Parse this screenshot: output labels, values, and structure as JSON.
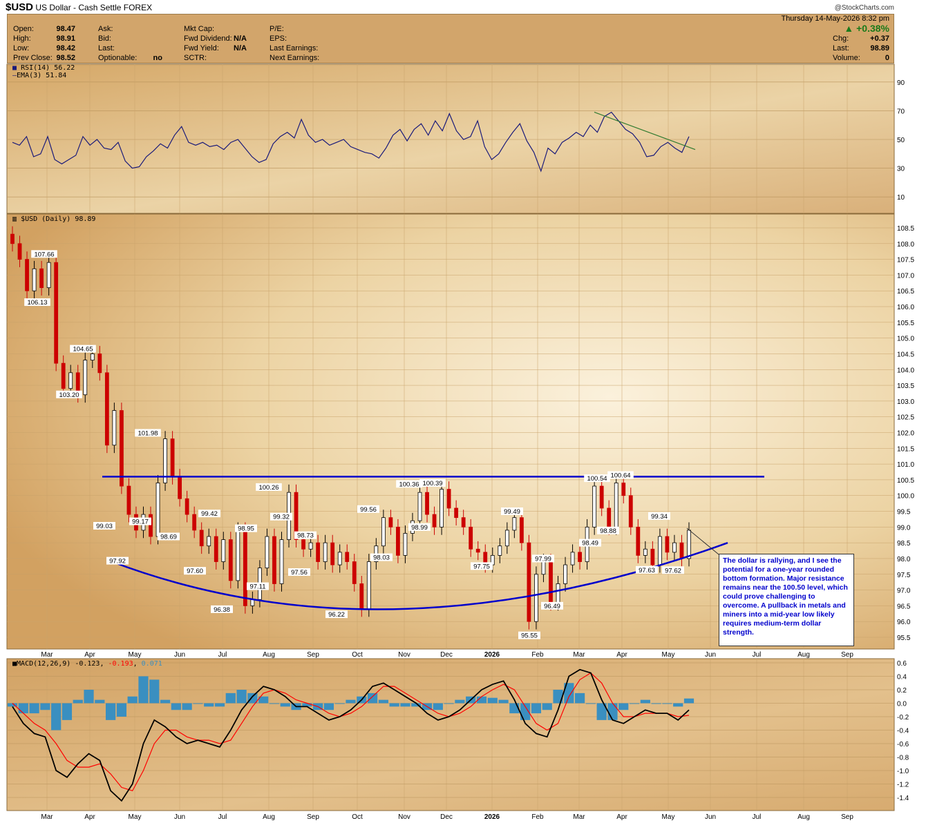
{
  "header": {
    "symbol": "$USD",
    "name": "US Dollar - Cash Settle",
    "exchange": "FOREX",
    "copyright": "@StockCharts.com",
    "datetime": "Thursday  14-May-2026  8:32 pm",
    "fields": {
      "open_label": "Open:",
      "open": "98.47",
      "high_label": "High:",
      "high": "98.91",
      "low_label": "Low:",
      "low": "98.42",
      "prev_label": "Prev Close:",
      "prev": "98.52",
      "ask_label": "Ask:",
      "bid_label": "Bid:",
      "last_label": "Last:",
      "optionable_label": "Optionable:",
      "optionable": "no",
      "mktcap_label": "Mkt Cap:",
      "fwddiv_label": "Fwd Dividend:",
      "fwddiv": "N/A",
      "fwdyield_label": "Fwd Yield:",
      "fwdyield": "N/A",
      "sctr_label": "SCTR:",
      "pe_label": "P/E:",
      "eps_label": "EPS:",
      "lastearn_label": "Last Earnings:",
      "nextearn_label": "Next Earnings:",
      "pct_change": "+0.38%",
      "chg_label": "Chg:",
      "chg": "+0.37",
      "last2_label": "Last:",
      "last2": "98.89",
      "volume_label": "Volume:",
      "volume": "0"
    }
  },
  "panels": {
    "rsi_label": "RSI(14) 56.22",
    "ema_label": "EMA(3) 51.84",
    "price_label": "$USD (Daily) 98.89",
    "macd_label_prefix": "MACD(12,26,9) -0.123, ",
    "macd_signal_value": "-0.193",
    "macd_hist_sep": ", ",
    "macd_hist_value": "0.071"
  },
  "annotation": {
    "text": "The dollar is rallying, and I see the potential for a one-year rounded bottom formation. Major resistance remains near the 100.50 level, which could prove challenging to overcome. A pullback in metals and miners into a mid-year low likely requires medium-term dollar strength."
  },
  "colors": {
    "panel_bg": "#d8ae72",
    "panel_bg_light": "#f1e0bd",
    "resistance_line": "#0000cc",
    "up_candle": "#000000",
    "down_candle": "#cc0000",
    "rsi_line": "#1a1a7a",
    "rsi_trend_line": "#2f7a2f",
    "macd_line": "#000000",
    "signal_line": "#ff0000",
    "histogram": "#3a8fc0"
  },
  "chart_data": [
    {
      "type": "line",
      "title": "RSI(14)",
      "y_ticks": [
        "90",
        "70",
        "50",
        "30",
        "10"
      ],
      "ylim": [
        0,
        100
      ],
      "series": [
        {
          "name": "RSI(14)",
          "values": [
            48,
            46,
            52,
            38,
            40,
            52,
            36,
            33,
            36,
            39,
            52,
            46,
            50,
            44,
            43,
            48,
            35,
            30,
            31,
            38,
            42,
            47,
            44,
            53,
            59,
            48,
            46,
            48,
            45,
            46,
            43,
            48,
            50,
            44,
            38,
            34,
            36,
            47,
            52,
            55,
            51,
            64,
            53,
            48,
            50,
            46,
            48,
            50,
            45,
            43,
            41,
            40,
            37,
            44,
            53,
            57,
            49,
            57,
            61,
            53,
            63,
            56,
            68,
            56,
            50,
            52,
            63,
            45,
            36,
            40,
            48,
            55,
            61,
            49,
            41,
            28,
            44,
            40,
            48,
            51,
            55,
            52,
            60,
            55,
            66,
            69,
            63,
            57,
            54,
            48,
            38,
            39,
            45,
            48,
            44,
            41,
            52
          ]
        }
      ],
      "trend_line_value_range": [
        69,
        43
      ]
    },
    {
      "type": "bar",
      "title": "$USD (Daily)",
      "y_ticks": [
        "108.5",
        "108.0",
        "107.5",
        "107.0",
        "106.5",
        "106.0",
        "105.5",
        "105.0",
        "104.5",
        "104.0",
        "103.5",
        "103.0",
        "102.5",
        "102.0",
        "101.5",
        "101.0",
        "100.5",
        "100.0",
        "99.5",
        "99.0",
        "98.5",
        "98.0",
        "97.5",
        "97.0",
        "96.5",
        "96.0",
        "95.5"
      ],
      "ylim": [
        95.2,
        108.8
      ],
      "x_ticks": [
        "Mar",
        "Apr",
        "May",
        "Jun",
        "Jul",
        "Aug",
        "Sep",
        "Oct",
        "Nov",
        "Dec",
        "2026",
        "Feb",
        "Mar",
        "Apr",
        "May",
        "Jun",
        "Jul",
        "Aug",
        "Sep"
      ],
      "closes": [
        108.0,
        107.5,
        106.5,
        107.2,
        106.6,
        107.4,
        104.2,
        103.4,
        103.9,
        103.2,
        104.3,
        104.5,
        103.9,
        101.6,
        102.7,
        100.3,
        99.4,
        98.9,
        99.4,
        98.7,
        100.4,
        101.8,
        100.6,
        99.9,
        99.4,
        98.9,
        98.4,
        98.7,
        97.9,
        98.6,
        97.3,
        98.9,
        96.5,
        96.7,
        97.7,
        98.7,
        97.2,
        98.6,
        100.1,
        98.6,
        98.3,
        98.5,
        97.9,
        98.5,
        97.8,
        98.2,
        97.9,
        97.2,
        96.4,
        97.9,
        98.4,
        99.3,
        99.0,
        98.1,
        98.8,
        99.2,
        100.1,
        99.4,
        99.0,
        100.2,
        99.6,
        99.3,
        99.0,
        98.3,
        98.2,
        97.8,
        98.1,
        98.4,
        98.9,
        99.3,
        98.5,
        96.0,
        97.5,
        97.9,
        96.6,
        97.2,
        97.8,
        98.2,
        97.9,
        99.0,
        100.3,
        99.6,
        99.0,
        100.4,
        100.0,
        99.0,
        98.1,
        98.3,
        97.8,
        98.7,
        98.2,
        98.5,
        98.0,
        98.9
      ],
      "price_labels": [
        {
          "label": "107.66",
          "value": 107.66
        },
        {
          "label": "106.13",
          "value": 106.13
        },
        {
          "label": "104.65",
          "value": 104.65
        },
        {
          "label": "103.20",
          "value": 103.2
        },
        {
          "label": "101.98",
          "value": 101.98
        },
        {
          "label": "99.03",
          "value": 99.03
        },
        {
          "label": "97.92",
          "value": 97.92
        },
        {
          "label": "99.17",
          "value": 99.17
        },
        {
          "label": "98.69",
          "value": 98.69
        },
        {
          "label": "99.42",
          "value": 99.42
        },
        {
          "label": "97.60",
          "value": 97.6
        },
        {
          "label": "96.38",
          "value": 96.38
        },
        {
          "label": "98.95",
          "value": 98.95
        },
        {
          "label": "97.11",
          "value": 97.11
        },
        {
          "label": "100.26",
          "value": 100.26
        },
        {
          "label": "99.32",
          "value": 99.32
        },
        {
          "label": "98.73",
          "value": 98.73
        },
        {
          "label": "97.56",
          "value": 97.56
        },
        {
          "label": "96.22",
          "value": 96.22
        },
        {
          "label": "99.56",
          "value": 99.56
        },
        {
          "label": "98.03",
          "value": 98.03
        },
        {
          "label": "100.36",
          "value": 100.36
        },
        {
          "label": "100.39",
          "value": 100.39
        },
        {
          "label": "98.99",
          "value": 98.99
        },
        {
          "label": "97.75",
          "value": 97.75
        },
        {
          "label": "99.49",
          "value": 99.49
        },
        {
          "label": "95.55",
          "value": 95.55
        },
        {
          "label": "97.99",
          "value": 97.99
        },
        {
          "label": "96.49",
          "value": 96.49
        },
        {
          "label": "98.49",
          "value": 98.49
        },
        {
          "label": "100.54",
          "value": 100.54
        },
        {
          "label": "98.88",
          "value": 98.88
        },
        {
          "label": "100.64",
          "value": 100.64
        },
        {
          "label": "99.34",
          "value": 99.34
        },
        {
          "label": "97.63",
          "value": 97.63
        },
        {
          "label": "97.62",
          "value": 97.62
        }
      ],
      "resistance_level": 100.6,
      "rounded_bottom_curve": {
        "start": 97.9,
        "low": 95.3,
        "end": 98.5
      }
    },
    {
      "type": "line",
      "title": "MACD(12,26,9)",
      "y_ticks": [
        "0.6",
        "0.4",
        "0.2",
        "0.0",
        "-0.2",
        "-0.4",
        "-0.6",
        "-0.8",
        "-1.0",
        "-1.2",
        "-1.4"
      ],
      "ylim": [
        -1.5,
        0.65
      ],
      "series": [
        {
          "name": "MACD",
          "values": [
            -0.05,
            -0.3,
            -0.45,
            -0.5,
            -1.0,
            -1.1,
            -0.9,
            -0.75,
            -0.85,
            -1.3,
            -1.45,
            -1.2,
            -0.6,
            -0.25,
            -0.35,
            -0.5,
            -0.6,
            -0.55,
            -0.6,
            -0.65,
            -0.4,
            -0.1,
            0.1,
            0.25,
            0.2,
            0.1,
            -0.05,
            -0.05,
            -0.15,
            -0.25,
            -0.2,
            -0.1,
            0.05,
            0.25,
            0.3,
            0.2,
            0.1,
            0.0,
            -0.15,
            -0.25,
            -0.2,
            -0.1,
            0.05,
            0.2,
            0.28,
            0.33,
            0.05,
            -0.3,
            -0.45,
            -0.5,
            -0.1,
            0.4,
            0.5,
            0.45,
            0.05,
            -0.25,
            -0.3,
            -0.2,
            -0.1,
            -0.15,
            -0.15,
            -0.25,
            -0.1
          ]
        },
        {
          "name": "Signal",
          "values": [
            0.0,
            -0.15,
            -0.3,
            -0.4,
            -0.6,
            -0.85,
            -0.95,
            -0.95,
            -0.9,
            -1.05,
            -1.25,
            -1.3,
            -1.0,
            -0.6,
            -0.4,
            -0.4,
            -0.5,
            -0.55,
            -0.55,
            -0.6,
            -0.55,
            -0.3,
            -0.05,
            0.15,
            0.2,
            0.15,
            0.05,
            0.0,
            -0.05,
            -0.15,
            -0.2,
            -0.15,
            -0.05,
            0.1,
            0.25,
            0.25,
            0.15,
            0.05,
            -0.05,
            -0.15,
            -0.2,
            -0.15,
            -0.05,
            0.1,
            0.2,
            0.28,
            0.2,
            -0.05,
            -0.3,
            -0.4,
            -0.3,
            0.1,
            0.35,
            0.45,
            0.3,
            0.0,
            -0.2,
            -0.2,
            -0.15,
            -0.15,
            -0.15,
            -0.2,
            -0.18
          ]
        },
        {
          "name": "Histogram",
          "values": [
            -0.05,
            -0.15,
            -0.15,
            -0.1,
            -0.4,
            -0.25,
            0.05,
            0.2,
            0.05,
            -0.25,
            -0.2,
            0.1,
            0.4,
            0.35,
            0.05,
            -0.1,
            -0.1,
            0.0,
            -0.05,
            -0.05,
            0.15,
            0.2,
            0.15,
            0.1,
            0.0,
            -0.05,
            -0.1,
            -0.05,
            -0.1,
            -0.1,
            0.0,
            0.05,
            0.1,
            0.15,
            0.05,
            -0.05,
            -0.05,
            -0.05,
            -0.1,
            -0.1,
            0.0,
            0.05,
            0.1,
            0.1,
            0.08,
            0.05,
            -0.15,
            -0.25,
            -0.15,
            -0.1,
            0.2,
            0.3,
            0.15,
            0.0,
            -0.25,
            -0.25,
            -0.1,
            0.0,
            0.05,
            0.0,
            0.0,
            -0.05,
            0.07
          ]
        }
      ]
    }
  ]
}
